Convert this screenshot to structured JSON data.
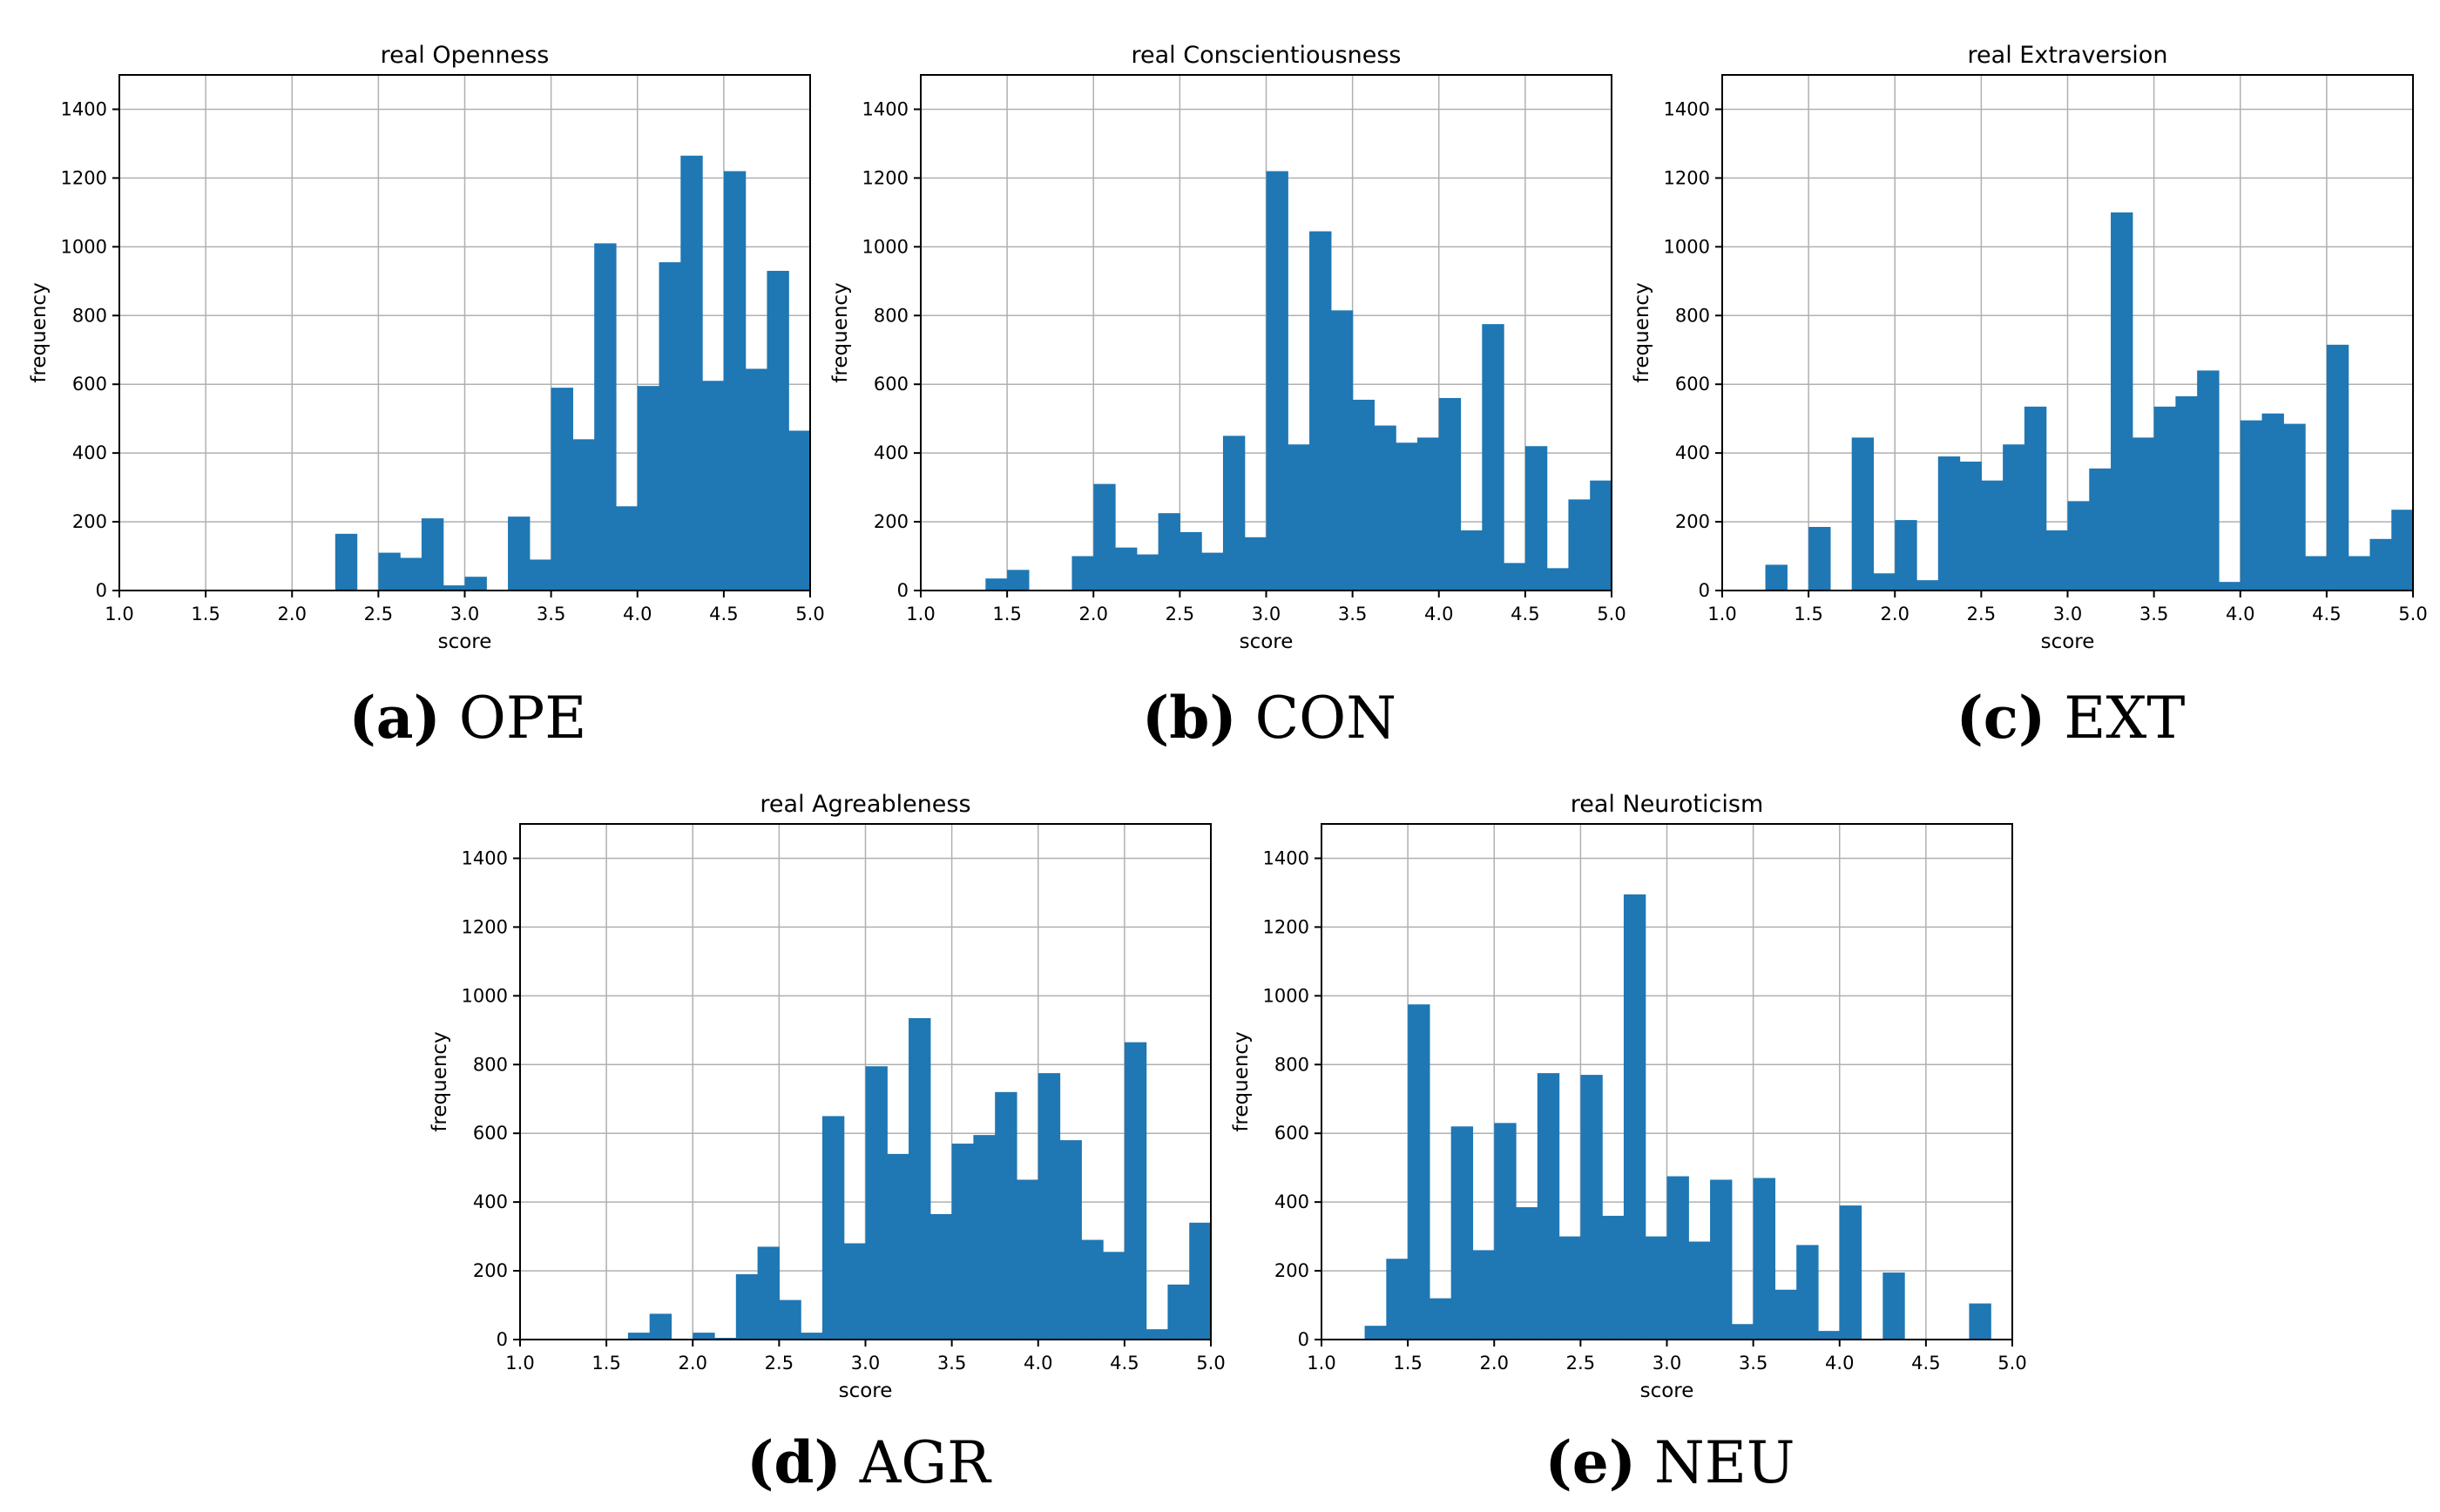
{
  "chart_data": [
    {
      "id": "ope",
      "type": "bar",
      "title": "real Openness",
      "xlabel": "score",
      "ylabel": "frequency",
      "caption_letter": "(a)",
      "caption_text": "OPE",
      "xlim": [
        1.0,
        5.0
      ],
      "ylim": [
        0,
        1500
      ],
      "xticks": [
        "1.0",
        "1.5",
        "2.0",
        "2.5",
        "3.0",
        "3.5",
        "4.0",
        "4.5",
        "5.0"
      ],
      "yticks": [
        "0",
        "200",
        "400",
        "600",
        "800",
        "1000",
        "1200",
        "1400"
      ],
      "grid": true,
      "bin_width": 0.125,
      "bins": [
        {
          "x": 2.25,
          "value": 165
        },
        {
          "x": 2.375,
          "value": 0
        },
        {
          "x": 2.5,
          "value": 110
        },
        {
          "x": 2.625,
          "value": 95
        },
        {
          "x": 2.75,
          "value": 210
        },
        {
          "x": 2.875,
          "value": 15
        },
        {
          "x": 3.0,
          "value": 40
        },
        {
          "x": 3.125,
          "value": 0
        },
        {
          "x": 3.25,
          "value": 215
        },
        {
          "x": 3.375,
          "value": 90
        },
        {
          "x": 3.5,
          "value": 590
        },
        {
          "x": 3.625,
          "value": 440
        },
        {
          "x": 3.75,
          "value": 1010
        },
        {
          "x": 3.875,
          "value": 245
        },
        {
          "x": 4.0,
          "value": 595
        },
        {
          "x": 4.125,
          "value": 955
        },
        {
          "x": 4.25,
          "value": 1265
        },
        {
          "x": 4.375,
          "value": 610
        },
        {
          "x": 4.5,
          "value": 1220
        },
        {
          "x": 4.625,
          "value": 645
        },
        {
          "x": 4.75,
          "value": 930
        },
        {
          "x": 4.875,
          "value": 465
        }
      ]
    },
    {
      "id": "con",
      "type": "bar",
      "title": "real Conscientiousness",
      "xlabel": "score",
      "ylabel": "frequency",
      "caption_letter": "(b)",
      "caption_text": "CON",
      "xlim": [
        1.0,
        5.0
      ],
      "ylim": [
        0,
        1500
      ],
      "xticks": [
        "1.0",
        "1.5",
        "2.0",
        "2.5",
        "3.0",
        "3.5",
        "4.0",
        "4.5",
        "5.0"
      ],
      "yticks": [
        "0",
        "200",
        "400",
        "600",
        "800",
        "1000",
        "1200",
        "1400"
      ],
      "grid": true,
      "bin_width": 0.125,
      "bins": [
        {
          "x": 1.375,
          "value": 35
        },
        {
          "x": 1.5,
          "value": 60
        },
        {
          "x": 1.875,
          "value": 100
        },
        {
          "x": 2.0,
          "value": 310
        },
        {
          "x": 2.125,
          "value": 125
        },
        {
          "x": 2.25,
          "value": 105
        },
        {
          "x": 2.375,
          "value": 225
        },
        {
          "x": 2.5,
          "value": 170
        },
        {
          "x": 2.625,
          "value": 110
        },
        {
          "x": 2.75,
          "value": 450
        },
        {
          "x": 2.875,
          "value": 155
        },
        {
          "x": 3.0,
          "value": 1220
        },
        {
          "x": 3.125,
          "value": 425
        },
        {
          "x": 3.25,
          "value": 1045
        },
        {
          "x": 3.375,
          "value": 815
        },
        {
          "x": 3.5,
          "value": 555
        },
        {
          "x": 3.625,
          "value": 480
        },
        {
          "x": 3.75,
          "value": 430
        },
        {
          "x": 3.875,
          "value": 445
        },
        {
          "x": 4.0,
          "value": 560
        },
        {
          "x": 4.125,
          "value": 175
        },
        {
          "x": 4.25,
          "value": 775
        },
        {
          "x": 4.375,
          "value": 80
        },
        {
          "x": 4.5,
          "value": 420
        },
        {
          "x": 4.625,
          "value": 65
        },
        {
          "x": 4.75,
          "value": 265
        },
        {
          "x": 4.875,
          "value": 320
        }
      ]
    },
    {
      "id": "ext",
      "type": "bar",
      "title": "real Extraversion",
      "xlabel": "score",
      "ylabel": "frequency",
      "caption_letter": "(c)",
      "caption_text": "EXT",
      "xlim": [
        1.0,
        5.0
      ],
      "ylim": [
        0,
        1500
      ],
      "xticks": [
        "1.0",
        "1.5",
        "2.0",
        "2.5",
        "3.0",
        "3.5",
        "4.0",
        "4.5",
        "5.0"
      ],
      "yticks": [
        "0",
        "200",
        "400",
        "600",
        "800",
        "1000",
        "1200",
        "1400"
      ],
      "grid": true,
      "bin_width": 0.125,
      "bins": [
        {
          "x": 1.25,
          "value": 75
        },
        {
          "x": 1.5,
          "value": 185
        },
        {
          "x": 1.75,
          "value": 445
        },
        {
          "x": 1.875,
          "value": 50
        },
        {
          "x": 2.0,
          "value": 205
        },
        {
          "x": 2.125,
          "value": 30
        },
        {
          "x": 2.25,
          "value": 390
        },
        {
          "x": 2.375,
          "value": 375
        },
        {
          "x": 2.5,
          "value": 320
        },
        {
          "x": 2.625,
          "value": 425
        },
        {
          "x": 2.75,
          "value": 535
        },
        {
          "x": 2.875,
          "value": 175
        },
        {
          "x": 3.0,
          "value": 260
        },
        {
          "x": 3.125,
          "value": 355
        },
        {
          "x": 3.25,
          "value": 1100
        },
        {
          "x": 3.375,
          "value": 445
        },
        {
          "x": 3.5,
          "value": 535
        },
        {
          "x": 3.625,
          "value": 565
        },
        {
          "x": 3.75,
          "value": 640
        },
        {
          "x": 3.875,
          "value": 25
        },
        {
          "x": 4.0,
          "value": 495
        },
        {
          "x": 4.125,
          "value": 515
        },
        {
          "x": 4.25,
          "value": 485
        },
        {
          "x": 4.375,
          "value": 100
        },
        {
          "x": 4.5,
          "value": 715
        },
        {
          "x": 4.625,
          "value": 100
        },
        {
          "x": 4.75,
          "value": 150
        },
        {
          "x": 4.875,
          "value": 235
        }
      ]
    },
    {
      "id": "agr",
      "type": "bar",
      "title": "real Agreableness",
      "xlabel": "score",
      "ylabel": "frequency",
      "caption_letter": "(d)",
      "caption_text": "AGR",
      "xlim": [
        1.0,
        5.0
      ],
      "ylim": [
        0,
        1500
      ],
      "xticks": [
        "1.0",
        "1.5",
        "2.0",
        "2.5",
        "3.0",
        "3.5",
        "4.0",
        "4.5",
        "5.0"
      ],
      "yticks": [
        "0",
        "200",
        "400",
        "600",
        "800",
        "1000",
        "1200",
        "1400"
      ],
      "grid": true,
      "bin_width": 0.125,
      "bins": [
        {
          "x": 1.625,
          "value": 20
        },
        {
          "x": 1.75,
          "value": 75
        },
        {
          "x": 2.0,
          "value": 20
        },
        {
          "x": 2.125,
          "value": 5
        },
        {
          "x": 2.25,
          "value": 190
        },
        {
          "x": 2.375,
          "value": 270
        },
        {
          "x": 2.5,
          "value": 115
        },
        {
          "x": 2.625,
          "value": 20
        },
        {
          "x": 2.75,
          "value": 650
        },
        {
          "x": 2.875,
          "value": 280
        },
        {
          "x": 3.0,
          "value": 795
        },
        {
          "x": 3.125,
          "value": 540
        },
        {
          "x": 3.25,
          "value": 935
        },
        {
          "x": 3.375,
          "value": 365
        },
        {
          "x": 3.5,
          "value": 570
        },
        {
          "x": 3.625,
          "value": 595
        },
        {
          "x": 3.75,
          "value": 720
        },
        {
          "x": 3.875,
          "value": 465
        },
        {
          "x": 4.0,
          "value": 775
        },
        {
          "x": 4.125,
          "value": 580
        },
        {
          "x": 4.25,
          "value": 290
        },
        {
          "x": 4.375,
          "value": 255
        },
        {
          "x": 4.5,
          "value": 865
        },
        {
          "x": 4.625,
          "value": 30
        },
        {
          "x": 4.75,
          "value": 160
        },
        {
          "x": 4.875,
          "value": 340
        }
      ]
    },
    {
      "id": "neu",
      "type": "bar",
      "title": "real Neuroticism",
      "xlabel": "score",
      "ylabel": "frequency",
      "caption_letter": "(e)",
      "caption_text": "NEU",
      "xlim": [
        1.0,
        5.0
      ],
      "ylim": [
        0,
        1500
      ],
      "xticks": [
        "1.0",
        "1.5",
        "2.0",
        "2.5",
        "3.0",
        "3.5",
        "4.0",
        "4.5",
        "5.0"
      ],
      "yticks": [
        "0",
        "200",
        "400",
        "600",
        "800",
        "1000",
        "1200",
        "1400"
      ],
      "grid": true,
      "bin_width": 0.125,
      "bins": [
        {
          "x": 1.25,
          "value": 40
        },
        {
          "x": 1.375,
          "value": 235
        },
        {
          "x": 1.5,
          "value": 975
        },
        {
          "x": 1.625,
          "value": 120
        },
        {
          "x": 1.75,
          "value": 620
        },
        {
          "x": 1.875,
          "value": 260
        },
        {
          "x": 2.0,
          "value": 630
        },
        {
          "x": 2.125,
          "value": 385
        },
        {
          "x": 2.25,
          "value": 775
        },
        {
          "x": 2.375,
          "value": 300
        },
        {
          "x": 2.5,
          "value": 770
        },
        {
          "x": 2.625,
          "value": 360
        },
        {
          "x": 2.75,
          "value": 1295
        },
        {
          "x": 2.875,
          "value": 300
        },
        {
          "x": 3.0,
          "value": 475
        },
        {
          "x": 3.125,
          "value": 285
        },
        {
          "x": 3.25,
          "value": 465
        },
        {
          "x": 3.375,
          "value": 45
        },
        {
          "x": 3.5,
          "value": 470
        },
        {
          "x": 3.625,
          "value": 145
        },
        {
          "x": 3.75,
          "value": 275
        },
        {
          "x": 3.875,
          "value": 25
        },
        {
          "x": 4.0,
          "value": 390
        },
        {
          "x": 4.25,
          "value": 195
        },
        {
          "x": 4.75,
          "value": 105
        }
      ]
    }
  ]
}
